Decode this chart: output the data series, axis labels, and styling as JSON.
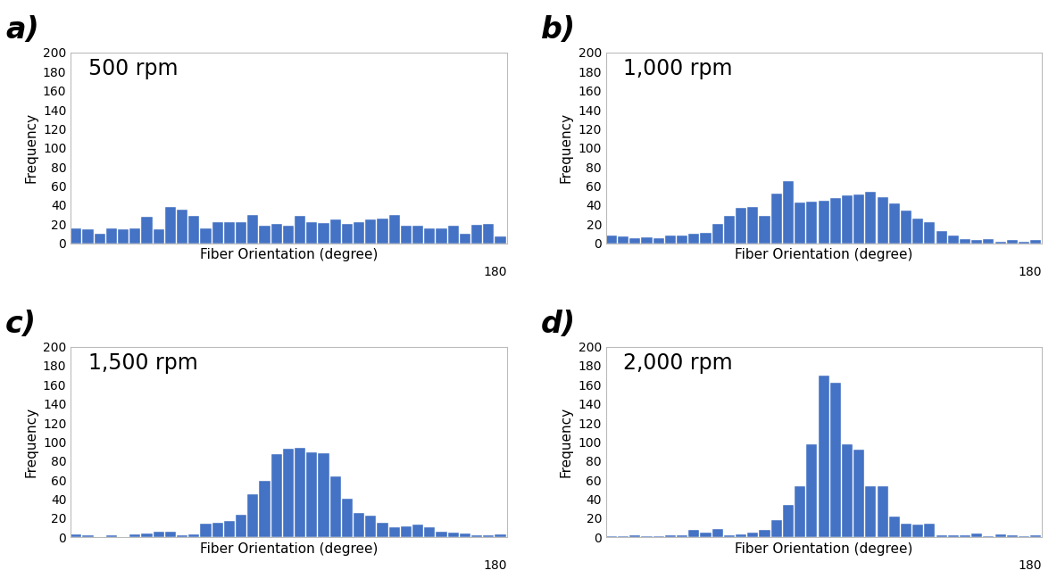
{
  "panels": [
    {
      "label": "a)",
      "title": "500 rpm",
      "bar_color": "#4472C4",
      "ylim": [
        0,
        200
      ],
      "yticks": [
        0,
        20,
        40,
        60,
        80,
        100,
        120,
        140,
        160,
        180,
        200
      ],
      "values": [
        16,
        15,
        10,
        16,
        15,
        16,
        28,
        15,
        38,
        35,
        29,
        16,
        22,
        22,
        22,
        30,
        18,
        20,
        18,
        29,
        22,
        21,
        25,
        20,
        22,
        25,
        26,
        30,
        18,
        18,
        16,
        16,
        18,
        10,
        19,
        20,
        7
      ]
    },
    {
      "label": "b)",
      "title": "1,000 rpm",
      "bar_color": "#4472C4",
      "ylim": [
        0,
        200
      ],
      "yticks": [
        0,
        20,
        40,
        60,
        80,
        100,
        120,
        140,
        160,
        180,
        200
      ],
      "values": [
        8,
        7,
        5,
        6,
        5,
        8,
        8,
        10,
        11,
        20,
        29,
        37,
        38,
        29,
        52,
        65,
        43,
        44,
        45,
        47,
        50,
        51,
        54,
        48,
        42,
        34,
        26,
        22,
        13,
        8,
        4,
        3,
        4,
        2,
        3,
        2,
        3
      ]
    },
    {
      "label": "c)",
      "title": "1,500 rpm",
      "bar_color": "#4472C4",
      "ylim": [
        0,
        200
      ],
      "yticks": [
        0,
        20,
        40,
        60,
        80,
        100,
        120,
        140,
        160,
        180,
        200
      ],
      "values": [
        3,
        2,
        0,
        2,
        0,
        3,
        4,
        6,
        6,
        2,
        3,
        14,
        15,
        17,
        24,
        45,
        59,
        87,
        93,
        94,
        89,
        88,
        64,
        41,
        26,
        23,
        15,
        11,
        12,
        13,
        11,
        6,
        5,
        4,
        2,
        2,
        3
      ]
    },
    {
      "label": "d)",
      "title": "2,000 rpm",
      "bar_color": "#4472C4",
      "ylim": [
        0,
        200
      ],
      "yticks": [
        0,
        20,
        40,
        60,
        80,
        100,
        120,
        140,
        160,
        180,
        200
      ],
      "values": [
        1,
        1,
        2,
        1,
        1,
        2,
        2,
        8,
        5,
        9,
        2,
        3,
        5,
        8,
        18,
        34,
        54,
        98,
        170,
        162,
        98,
        92,
        54,
        54,
        22,
        14,
        13,
        14,
        2,
        2,
        2,
        4,
        1,
        3,
        2,
        1,
        2
      ]
    }
  ],
  "xlabel": "Fiber Orientation (degree)",
  "ylabel": "Frequency",
  "x_end_label": "180",
  "bar_width": 0.92,
  "panel_label_fontsize": 24,
  "title_fontsize": 17,
  "axis_label_fontsize": 11,
  "tick_fontsize": 10,
  "background_color": "#ffffff",
  "axes_bg_color": "#ffffff",
  "spine_color": "#bbbbbb"
}
